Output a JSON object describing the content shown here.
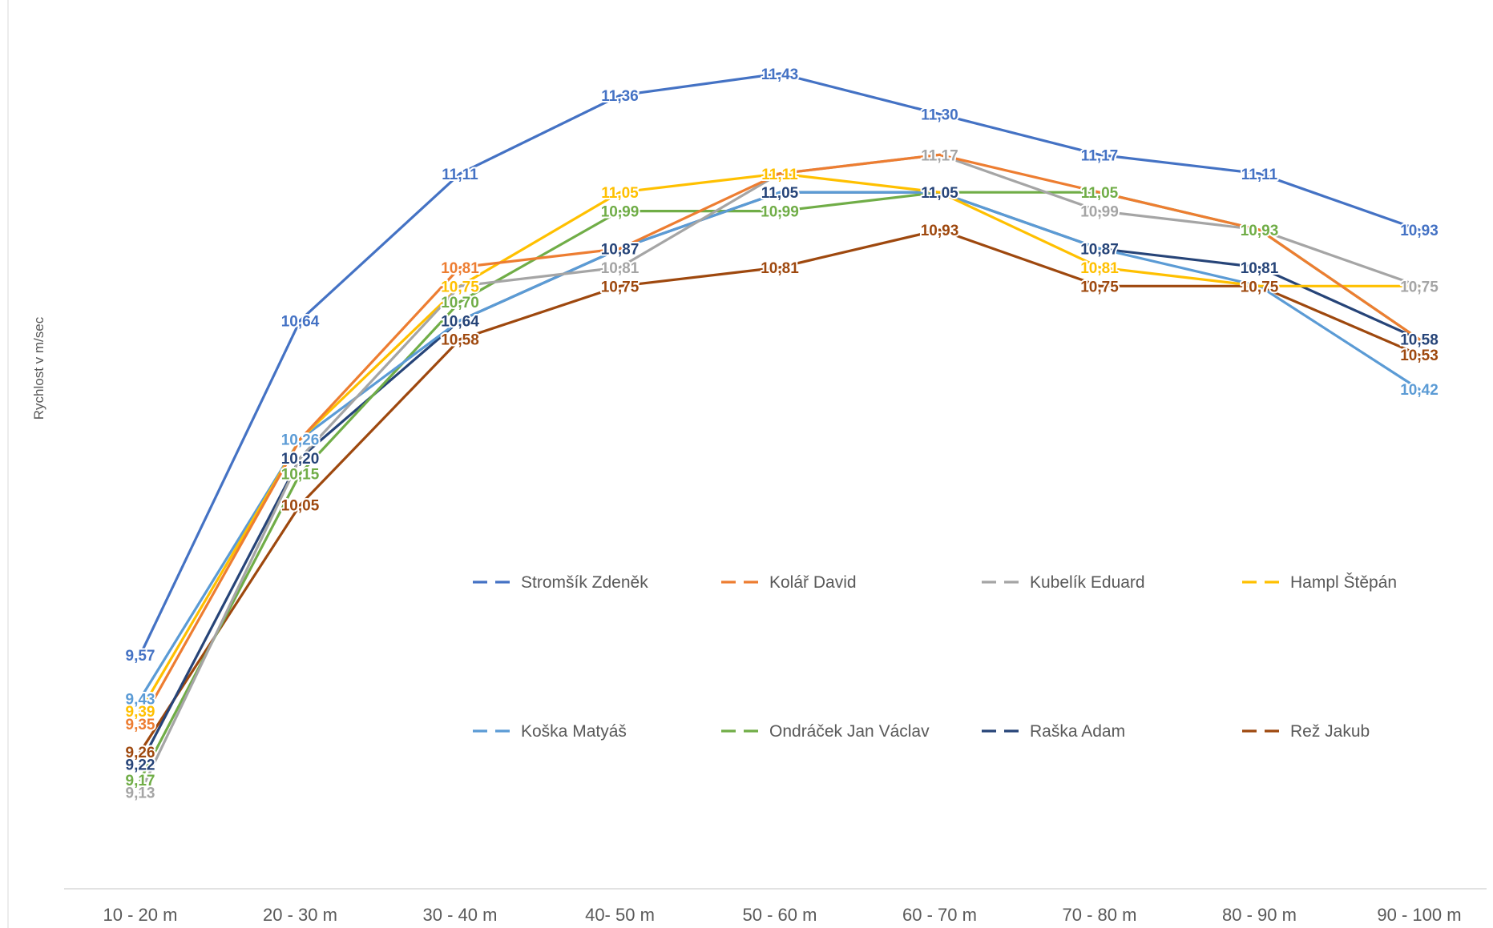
{
  "chart_data": {
    "type": "line",
    "title": "",
    "xlabel": "",
    "ylabel": "Rychlost v m/sec",
    "ylim": [
      8.95,
      11.55
    ],
    "grid": false,
    "legend_position": "inside-lower-right",
    "categories": [
      "10 - 20 m",
      "20 - 30 m",
      "30 - 40 m",
      "40- 50 m",
      "50 - 60 m",
      "60 - 70 m",
      "70 - 80 m",
      "80 - 90 m",
      "90 - 100 m"
    ],
    "series": [
      {
        "name": "Stromšík Zdeněk",
        "color": "#4472C4",
        "values": [
          9.57,
          10.64,
          11.11,
          11.36,
          11.43,
          11.3,
          11.17,
          11.11,
          10.93
        ],
        "labels": [
          "9,57",
          "10,64",
          "11,11",
          "11,36",
          "11,43",
          "11,30",
          "11,17",
          "11,11",
          "10,93"
        ]
      },
      {
        "name": "Kolář David",
        "color": "#ED7D31",
        "values": [
          9.35,
          10.26,
          10.81,
          10.87,
          11.11,
          11.17,
          11.05,
          10.93,
          10.58
        ],
        "labels": [
          "9,35",
          "",
          "10,81",
          "",
          "",
          "",
          "",
          "",
          ""
        ]
      },
      {
        "name": "Kubelík Eduard",
        "color": "#A5A5A5",
        "values": [
          9.13,
          10.2,
          10.75,
          10.81,
          11.11,
          11.17,
          10.99,
          10.93,
          10.75
        ],
        "labels": [
          "9,13",
          "",
          "",
          "10,81",
          "",
          "11,17",
          "10,99",
          "",
          "10,75"
        ]
      },
      {
        "name": "Hampl Štěpán",
        "color": "#FFC000",
        "values": [
          9.39,
          10.26,
          10.75,
          11.05,
          11.11,
          11.05,
          10.81,
          10.75,
          10.75
        ],
        "labels": [
          "9,39",
          "",
          "10,75",
          "11,05",
          "11,11",
          "",
          "10,81",
          "",
          ""
        ]
      },
      {
        "name": "Koška Matyáš",
        "color": "#5B9BD5",
        "values": [
          9.43,
          10.26,
          10.64,
          10.87,
          11.05,
          11.05,
          10.87,
          10.75,
          10.42
        ],
        "labels": [
          "9,43",
          "10,26",
          "",
          "",
          "",
          "",
          "",
          "",
          "10,42"
        ]
      },
      {
        "name": "Ondráček Jan Václav",
        "color": "#70AD47",
        "values": [
          9.17,
          10.15,
          10.7,
          10.99,
          10.99,
          11.05,
          11.05,
          10.93,
          10.58
        ],
        "labels": [
          "9,17",
          "10,15",
          "10,70",
          "10,99",
          "10,99",
          "",
          "11,05",
          "10,93",
          ""
        ]
      },
      {
        "name": "Raška Adam",
        "color": "#264478",
        "values": [
          9.22,
          10.2,
          10.64,
          10.87,
          11.05,
          11.05,
          10.87,
          10.81,
          10.58
        ],
        "labels": [
          "9,22",
          "10,20",
          "10,64",
          "10,87",
          "11,05",
          "11,05",
          "10,87",
          "10,81",
          "10,58"
        ]
      },
      {
        "name": "Rež Jakub",
        "color": "#9E480E",
        "values": [
          9.26,
          10.05,
          10.58,
          10.75,
          10.81,
          10.93,
          10.75,
          10.75,
          10.53
        ],
        "labels": [
          "9,26",
          "10,05",
          "10,58",
          "10,75",
          "10,81",
          "10,93",
          "10,75",
          "10,75",
          "10,53"
        ]
      }
    ]
  }
}
